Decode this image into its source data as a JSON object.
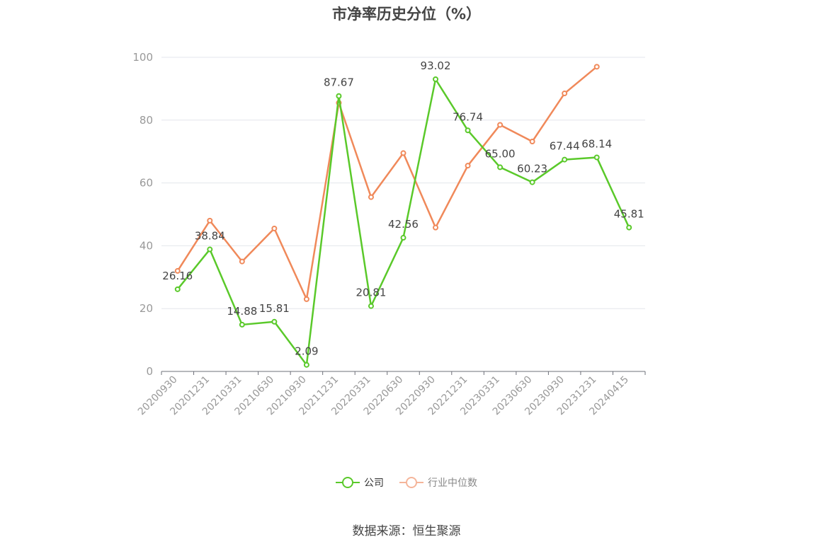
{
  "chart_data": {
    "type": "line",
    "title": "市净率历史分位（%）",
    "categories": [
      "20200930",
      "20201231",
      "20210331",
      "20210630",
      "20210930",
      "20211231",
      "20220331",
      "20220630",
      "20220930",
      "20221231",
      "20230331",
      "20230630",
      "20230930",
      "20231231",
      "20240415"
    ],
    "ylim": [
      0,
      100
    ],
    "yticks": [
      0,
      20,
      40,
      60,
      80,
      100
    ],
    "grid": true,
    "legend_position": "bottom-center",
    "series": [
      {
        "name": "公司",
        "color": "#5ac92a",
        "values": [
          26.16,
          38.84,
          14.88,
          15.81,
          2.09,
          87.67,
          20.81,
          42.56,
          93.02,
          76.74,
          65.0,
          60.23,
          67.44,
          68.14,
          45.81
        ],
        "labels": [
          "26.16",
          "38.84",
          "14.88",
          "15.81",
          "2.09",
          "87.67",
          "20.81",
          "42.56",
          "93.02",
          "76.74",
          "65.00",
          "60.23",
          "67.44",
          "68.14",
          "45.81"
        ]
      },
      {
        "name": "行业中位数",
        "color": "#f0895a",
        "values": [
          32,
          48,
          35,
          45.5,
          23,
          85.5,
          55.5,
          69.5,
          45.8,
          65.5,
          78.5,
          73.2,
          88.5,
          97,
          null
        ]
      }
    ],
    "source": "数据来源：恒生聚源"
  }
}
